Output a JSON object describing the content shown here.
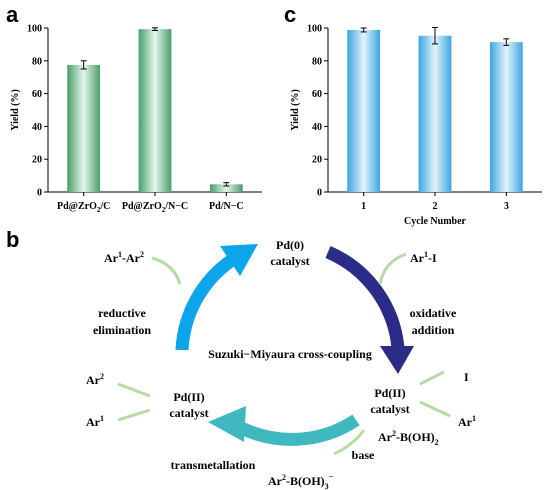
{
  "chart_data": [
    {
      "panel": "a",
      "type": "bar",
      "categories": [
        "Pd@ZrO2/C",
        "Pd@ZrO2/N-C",
        "Pd/N-C"
      ],
      "category_labels": [
        {
          "main": "Pd@ZrO",
          "sub": "2",
          "rest": "/C"
        },
        {
          "main": "Pd@ZrO",
          "sub": "2",
          "rest": "/N−C"
        },
        {
          "main": "Pd/N−C",
          "sub": "",
          "rest": ""
        }
      ],
      "values": [
        77.5,
        99.3,
        4.7
      ],
      "errors": [
        2.5,
        0.8,
        1.0
      ],
      "ylabel": "Yield (%)",
      "xlabel": "",
      "ylim": [
        0,
        100
      ],
      "yticks": [
        0,
        20,
        40,
        60,
        80,
        100
      ],
      "bar_color": "#6dba8c",
      "grid": false
    },
    {
      "panel": "c",
      "type": "bar",
      "categories": [
        "1",
        "2",
        "3"
      ],
      "values": [
        98.8,
        95.3,
        91.4
      ],
      "errors": [
        1.2,
        5.0,
        2.0
      ],
      "ylabel": "Yield (%)",
      "xlabel": "Cycle Number",
      "ylim": [
        0,
        100
      ],
      "yticks": [
        0,
        20,
        40,
        60,
        80,
        100
      ],
      "bar_color": "#57b5e8",
      "grid": false
    }
  ],
  "panel_b": {
    "letter": "b",
    "center": "Suzuki−Miyaura cross-coupling",
    "nodes": {
      "pd0": {
        "line1": "Pd(0)",
        "line2": "catalyst"
      },
      "pd2_right": {
        "line1": "Pd(II)",
        "line2": "catalyst"
      },
      "pd2_left": {
        "line1": "Pd(II)",
        "line2": "catalyst"
      }
    },
    "steps": {
      "oxidative": {
        "line1": "oxidative",
        "line2": "addition"
      },
      "reductive": {
        "line1": "reductive",
        "line2": "elimination"
      },
      "transmetallation": "transmetallation",
      "base": "base"
    },
    "species": {
      "ar1_i": {
        "main": "Ar",
        "sup": "1",
        "rest": "-I"
      },
      "ar1_ar2": {
        "a": "Ar",
        "s1": "1",
        "b": "-Ar",
        "s2": "2"
      },
      "i": "I",
      "ar1_right": {
        "main": "Ar",
        "sup": "1"
      },
      "ar2_left": {
        "main": "Ar",
        "sup": "2"
      },
      "ar1_left": {
        "main": "Ar",
        "sup": "1"
      },
      "ar2_boronic": {
        "a": "Ar",
        "s1": "2",
        "b": "-B(OH)",
        "s2": "2"
      },
      "ar2_borate": {
        "a": "Ar",
        "s1": "2",
        "b": "-B(OH)",
        "s2": "3",
        "s3": "−"
      }
    },
    "colors": {
      "top_arrow": "#0da5ea",
      "right_arrow": "#2b2c87",
      "bottom_arrow": "#3fb8c0",
      "ligand": "#b6dba4"
    }
  }
}
